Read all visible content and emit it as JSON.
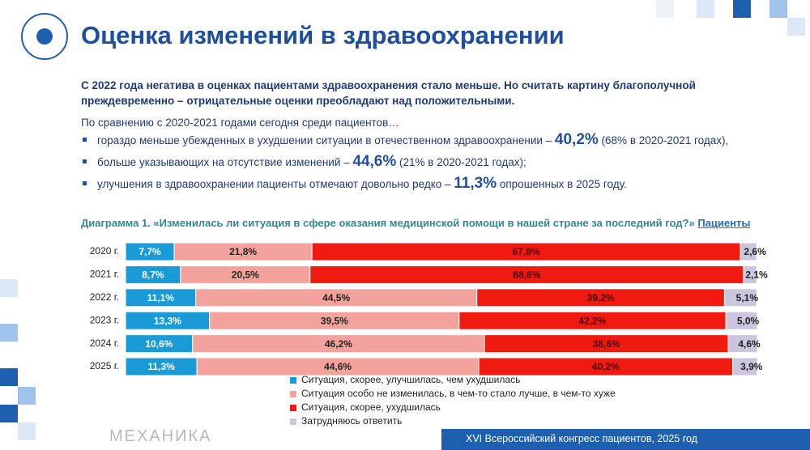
{
  "title": "Оценка изменений в здравоохранении",
  "lead": "С 2022 года негатива в оценках пациентами здравоохранения стало меньше. Но считать картину благополучной преждевременно – отрицательные оценки преобладают над положительными.",
  "sub": "По сравнению с 2020-2021 годами сегодня среди пациентов…",
  "bullets": [
    {
      "text": "гораздо меньше убежденных в ухудшении ситуации в отечественном здравоохранении – ",
      "highlight": "40,2%",
      "rest": " (68% в 2020-2021 годах),"
    },
    {
      "text": "больше указывающих на отсутствие изменений – ",
      "highlight": "44,6%",
      "rest": " (21% в 2020-2021 годах);"
    },
    {
      "text": "улучшения в здравоохранении пациенты отмечают довольно редко – ",
      "highlight": "11,3%",
      "rest": " опрошенных в 2025 году."
    }
  ],
  "footer": "XVI Всероссийский конгресс пациентов,  2025 год",
  "logo": "МЕХАНИКА",
  "chart_data": {
    "type": "bar",
    "orientation": "horizontal",
    "stacked": true,
    "title": "Диаграмма 1. «Изменилась ли ситуация в сфере оказания медицинской помощи в нашей стране за последний год?» ",
    "subtitle": "Пациенты",
    "categories": [
      "2020 г.",
      "2021 г.",
      "2022 г.",
      "2023 г.",
      "2024 г.",
      "2025 г."
    ],
    "xlim": [
      0,
      100
    ],
    "series": [
      {
        "name": "Ситуация, скорее, улучшилась, чем ухудшилась",
        "color": "#1a9bd7",
        "values": [
          7.7,
          8.7,
          11.1,
          13.3,
          10.6,
          11.3
        ],
        "value_labels": [
          "7,7%",
          "8,7%",
          "11,1%",
          "13,3%",
          "10,6%",
          "11,3%"
        ]
      },
      {
        "name": "Ситуация особо не изменилась, в чем-то стало лучше, в чем-то хуже",
        "color": "#f4a39c",
        "values": [
          21.8,
          20.5,
          44.5,
          39.5,
          46.2,
          44.6
        ],
        "value_labels": [
          "21,8%",
          "20,5%",
          "44,5%",
          "39,5%",
          "46,2%",
          "44,6%"
        ]
      },
      {
        "name": "Ситуация, скорее, ухудшилась",
        "color": "#f01a10",
        "values": [
          67.8,
          68.6,
          39.2,
          42.2,
          38.6,
          40.2
        ],
        "value_labels": [
          "67,8%",
          "68,6%",
          "39,2%",
          "42,2%",
          "38,6%",
          "40,2%"
        ]
      },
      {
        "name": "Затрудняюсь ответить",
        "color": "#cbc5de",
        "values": [
          2.6,
          2.1,
          5.1,
          5.0,
          4.6,
          3.9
        ],
        "value_labels": [
          "2,6%",
          "2,1%",
          "5,1%",
          "5,0%",
          "4,6%",
          "3,9%"
        ]
      }
    ]
  }
}
